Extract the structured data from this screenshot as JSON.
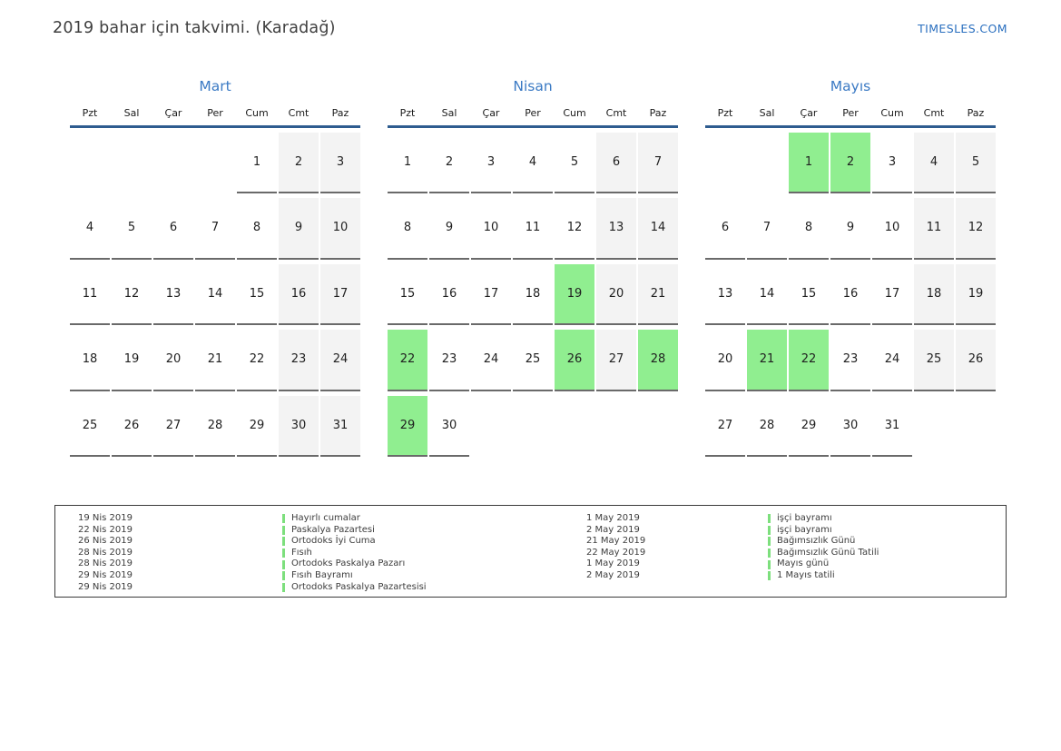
{
  "header": {
    "title": "2019 bahar için takvimi. (Karadağ)",
    "site_link": "TIMESLES.COM"
  },
  "weekdays": [
    "Pzt",
    "Sal",
    "Çar",
    "Per",
    "Cum",
    "Cmt",
    "Paz"
  ],
  "months": [
    {
      "name": "Mart",
      "weeks": [
        [
          null,
          null,
          null,
          null,
          1,
          2,
          3
        ],
        [
          4,
          5,
          6,
          7,
          8,
          9,
          10
        ],
        [
          11,
          12,
          13,
          14,
          15,
          16,
          17
        ],
        [
          18,
          19,
          20,
          21,
          22,
          23,
          24
        ],
        [
          25,
          26,
          27,
          28,
          29,
          30,
          31
        ]
      ],
      "holidays": []
    },
    {
      "name": "Nisan",
      "weeks": [
        [
          1,
          2,
          3,
          4,
          5,
          6,
          7
        ],
        [
          8,
          9,
          10,
          11,
          12,
          13,
          14
        ],
        [
          15,
          16,
          17,
          18,
          19,
          20,
          21
        ],
        [
          22,
          23,
          24,
          25,
          26,
          27,
          28
        ],
        [
          29,
          30,
          null,
          null,
          null,
          null,
          null
        ]
      ],
      "holidays": [
        19,
        22,
        26,
        28,
        29
      ]
    },
    {
      "name": "Mayıs",
      "weeks": [
        [
          null,
          null,
          1,
          2,
          3,
          4,
          5
        ],
        [
          6,
          7,
          8,
          9,
          10,
          11,
          12
        ],
        [
          13,
          14,
          15,
          16,
          17,
          18,
          19
        ],
        [
          20,
          21,
          22,
          23,
          24,
          25,
          26
        ],
        [
          27,
          28,
          29,
          30,
          31,
          null,
          null
        ]
      ],
      "holidays": [
        1,
        2,
        21,
        22
      ]
    }
  ],
  "legend": {
    "left": [
      {
        "date": "19 Nis 2019",
        "name": "Hayırlı cumalar"
      },
      {
        "date": "22 Nis 2019",
        "name": "Paskalya Pazartesi"
      },
      {
        "date": "26 Nis 2019",
        "name": "Ortodoks İyi Cuma"
      },
      {
        "date": "28 Nis 2019",
        "name": "Fısıh"
      },
      {
        "date": "28 Nis 2019",
        "name": "Ortodoks Paskalya Pazarı"
      },
      {
        "date": "29 Nis 2019",
        "name": "Fısıh Bayramı"
      },
      {
        "date": "29 Nis 2019",
        "name": "Ortodoks Paskalya Pazartesisi"
      }
    ],
    "right": [
      {
        "date": "1 May 2019",
        "name": "işçi bayramı"
      },
      {
        "date": "2 May 2019",
        "name": "işçi bayramı"
      },
      {
        "date": "21 May 2019",
        "name": "Bağımsızlık Günü"
      },
      {
        "date": "22 May 2019",
        "name": "Bağımsızlık Günü Tatili"
      },
      {
        "date": "1 May 2019",
        "name": "Mayıs günü"
      },
      {
        "date": "2 May 2019",
        "name": "1 Mayıs tatili"
      }
    ]
  },
  "colors": {
    "holiday_green": "#90ee90",
    "weekend_gray": "#f3f3f3",
    "month_title_blue": "#3b7ac4",
    "divider_blue": "#2e5c8f",
    "link_blue": "#2a6fbf",
    "legend_bar_green": "#7ddf7d",
    "cell_border_gray": "#6a6a6a"
  }
}
